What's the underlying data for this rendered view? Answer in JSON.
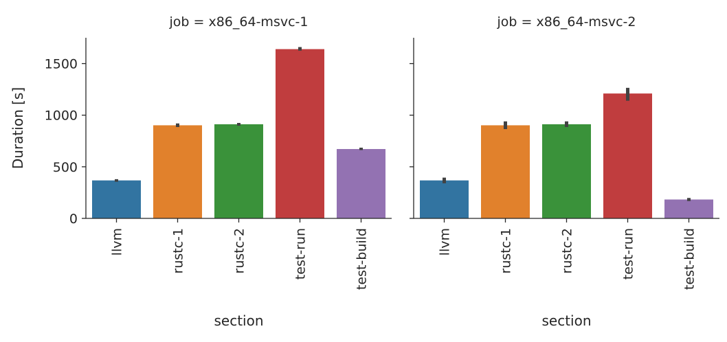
{
  "chart_data": [
    {
      "type": "bar",
      "title": "job = x86_64-msvc-1",
      "xlabel": "section",
      "ylabel": "Duration [s]",
      "ylim": [
        0,
        1750
      ],
      "yticks": [
        0,
        500,
        1000,
        1500
      ],
      "grid": false,
      "categories": [
        "llvm",
        "rustc-1",
        "rustc-2",
        "test-run",
        "test-build"
      ],
      "values": [
        368,
        902,
        912,
        1640,
        672
      ],
      "error_low": [
        355,
        885,
        898,
        1625,
        662
      ],
      "error_high": [
        380,
        920,
        925,
        1660,
        685
      ],
      "colors": [
        "#3274a1",
        "#e1812c",
        "#3a923a",
        "#c03d3e",
        "#9372b2"
      ]
    },
    {
      "type": "bar",
      "title": "job = x86_64-msvc-2",
      "xlabel": "section",
      "ylabel": "",
      "ylim": [
        0,
        1750
      ],
      "yticks": [
        0,
        500,
        1000,
        1500
      ],
      "grid": false,
      "categories": [
        "llvm",
        "rustc-1",
        "rustc-2",
        "test-run",
        "test-build"
      ],
      "values": [
        368,
        902,
        912,
        1210,
        183
      ],
      "error_low": [
        340,
        865,
        885,
        1140,
        168
      ],
      "error_high": [
        395,
        940,
        940,
        1265,
        198
      ],
      "colors": [
        "#3274a1",
        "#e1812c",
        "#3a923a",
        "#c03d3e",
        "#9372b2"
      ]
    }
  ]
}
